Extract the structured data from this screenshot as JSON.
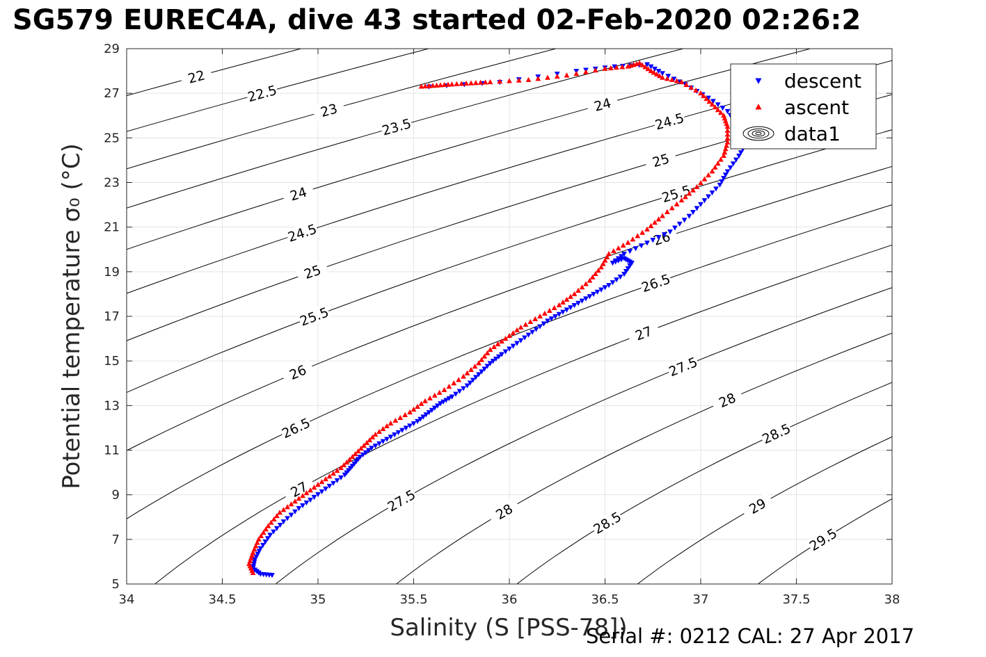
{
  "title": "SG579 EUREC4A, dive 43 started 02-Feb-2020 02:26:2",
  "footer": "Serial #: 0212  CAL: 27 Apr 2017",
  "colors": {
    "descent": "#0000ff",
    "ascent": "#ff0000",
    "contour": "#000000",
    "grid": "#e3e3e3"
  },
  "chart_data": {
    "type": "scatter",
    "xlabel": "Salinity (S [PSS-78])",
    "ylabel": "Potential temperature σ₀ (°C)",
    "xlim": [
      34,
      38
    ],
    "ylim": [
      5,
      29
    ],
    "xticks": [
      "34",
      "34.5",
      "35",
      "35.5",
      "36",
      "36.5",
      "37",
      "37.5",
      "38"
    ],
    "yticks": [
      "5",
      "7",
      "9",
      "11",
      "13",
      "15",
      "17",
      "19",
      "21",
      "23",
      "25",
      "27",
      "29"
    ],
    "grid": true,
    "legend_position": "top-right",
    "legend": [
      "descent",
      "ascent",
      "data1"
    ],
    "contour_levels": [
      22,
      22.5,
      23,
      23.5,
      24,
      24.5,
      25,
      25.5,
      26,
      26.5,
      27,
      27.5,
      28,
      28.5,
      29,
      29.5
    ],
    "series": [
      {
        "name": "descent",
        "marker": "triangle-down",
        "points": [
          [
            34.76,
            5.4
          ],
          [
            34.7,
            5.45
          ],
          [
            34.66,
            5.7
          ],
          [
            34.67,
            6.1
          ],
          [
            34.7,
            6.6
          ],
          [
            34.75,
            7.2
          ],
          [
            34.82,
            7.8
          ],
          [
            34.9,
            8.4
          ],
          [
            34.98,
            8.9
          ],
          [
            35.06,
            9.4
          ],
          [
            35.14,
            9.9
          ],
          [
            35.18,
            10.3
          ],
          [
            35.22,
            10.7
          ],
          [
            35.28,
            11.1
          ],
          [
            35.36,
            11.5
          ],
          [
            35.44,
            11.9
          ],
          [
            35.52,
            12.3
          ],
          [
            35.58,
            12.7
          ],
          [
            35.64,
            13.1
          ],
          [
            35.7,
            13.4
          ],
          [
            35.78,
            13.9
          ],
          [
            35.84,
            14.4
          ],
          [
            35.9,
            14.9
          ],
          [
            35.96,
            15.3
          ],
          [
            36.04,
            15.8
          ],
          [
            36.12,
            16.3
          ],
          [
            36.2,
            16.8
          ],
          [
            36.28,
            17.2
          ],
          [
            36.36,
            17.6
          ],
          [
            36.44,
            18.0
          ],
          [
            36.52,
            18.4
          ],
          [
            36.6,
            18.9
          ],
          [
            36.64,
            19.4
          ],
          [
            36.6,
            19.6
          ],
          [
            36.54,
            19.4
          ],
          [
            36.6,
            19.8
          ],
          [
            36.72,
            20.3
          ],
          [
            36.84,
            20.8
          ],
          [
            36.94,
            21.5
          ],
          [
            37.02,
            22.2
          ],
          [
            37.1,
            22.9
          ],
          [
            37.14,
            23.5
          ],
          [
            37.2,
            24.2
          ],
          [
            37.24,
            24.8
          ],
          [
            37.2,
            25.5
          ],
          [
            37.14,
            26.2
          ],
          [
            37.04,
            26.8
          ],
          [
            36.92,
            27.4
          ],
          [
            36.8,
            27.9
          ],
          [
            36.72,
            28.3
          ],
          [
            36.55,
            28.2
          ],
          [
            36.35,
            28.0
          ],
          [
            35.95,
            27.5
          ],
          [
            35.58,
            27.3
          ]
        ]
      },
      {
        "name": "ascent",
        "marker": "triangle-up",
        "points": [
          [
            35.54,
            27.3
          ],
          [
            35.62,
            27.35
          ],
          [
            35.7,
            27.4
          ],
          [
            35.8,
            27.45
          ],
          [
            35.9,
            27.5
          ],
          [
            36.1,
            27.6
          ],
          [
            36.3,
            27.8
          ],
          [
            36.5,
            28.1
          ],
          [
            36.62,
            28.2
          ],
          [
            36.68,
            28.35
          ],
          [
            36.74,
            28.0
          ],
          [
            36.8,
            27.7
          ],
          [
            36.9,
            27.5
          ],
          [
            37.0,
            27.0
          ],
          [
            37.06,
            26.5
          ],
          [
            37.12,
            26.0
          ],
          [
            37.14,
            25.5
          ],
          [
            37.14,
            24.8
          ],
          [
            37.12,
            24.2
          ],
          [
            37.06,
            23.5
          ],
          [
            36.98,
            22.8
          ],
          [
            36.9,
            22.2
          ],
          [
            36.8,
            21.5
          ],
          [
            36.72,
            20.9
          ],
          [
            36.62,
            20.3
          ],
          [
            36.52,
            19.8
          ],
          [
            36.48,
            19.2
          ],
          [
            36.42,
            18.6
          ],
          [
            36.34,
            18.0
          ],
          [
            36.26,
            17.5
          ],
          [
            36.16,
            17.0
          ],
          [
            36.06,
            16.5
          ],
          [
            35.98,
            16.0
          ],
          [
            35.9,
            15.5
          ],
          [
            35.84,
            14.9
          ],
          [
            35.76,
            14.3
          ],
          [
            35.66,
            13.7
          ],
          [
            35.56,
            13.2
          ],
          [
            35.48,
            12.7
          ],
          [
            35.38,
            12.2
          ],
          [
            35.3,
            11.7
          ],
          [
            35.24,
            11.2
          ],
          [
            35.18,
            10.7
          ],
          [
            35.12,
            10.2
          ],
          [
            35.04,
            9.7
          ],
          [
            34.96,
            9.2
          ],
          [
            34.88,
            8.7
          ],
          [
            34.8,
            8.2
          ],
          [
            34.74,
            7.6
          ],
          [
            34.69,
            7.0
          ],
          [
            34.66,
            6.4
          ],
          [
            34.64,
            5.9
          ],
          [
            34.66,
            5.5
          ]
        ]
      }
    ]
  }
}
